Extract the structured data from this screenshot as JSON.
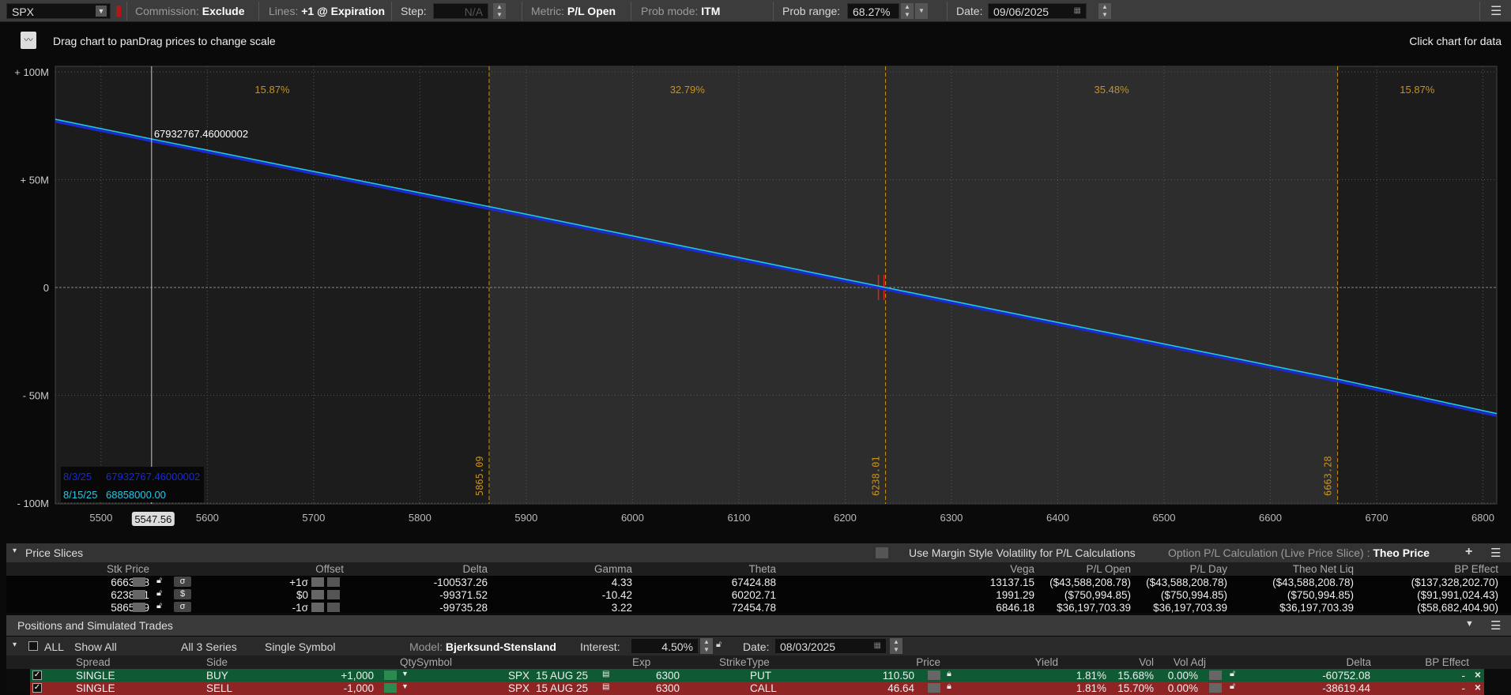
{
  "toolbar": {
    "symbol": "SPX",
    "commission_label": "Commission:",
    "commission_value": "Exclude",
    "lines_label": "Lines:",
    "lines_value": "+1 @ Expiration",
    "step_label": "Step:",
    "step_value": "N/A",
    "metric_label": "Metric:",
    "metric_value": "P/L Open",
    "prob_mode_label": "Prob mode:",
    "prob_mode_value": "ITM",
    "prob_range_label": "Prob range:",
    "prob_range_value": "68.27%",
    "date_label": "Date:",
    "date_value": "09/06/2025"
  },
  "chart_hint": "Drag chart to panDrag prices to change scale",
  "chart_hint_right": "Click chart for data",
  "chart_data": {
    "type": "line",
    "xlim": [
      5457,
      6813
    ],
    "ylim": [
      -100000000,
      100000000
    ],
    "x_ticks": [
      5500,
      5600,
      5700,
      5800,
      5900,
      6000,
      6100,
      6200,
      6300,
      6400,
      6500,
      6600,
      6700,
      6800
    ],
    "y_ticks": [
      {
        "v": 100000000,
        "label": "+ 100M"
      },
      {
        "v": 50000000,
        "label": "+ 50M"
      },
      {
        "v": 0,
        "label": "0"
      },
      {
        "v": -50000000,
        "label": "- 50M"
      },
      {
        "v": -100000000,
        "label": "- 100M"
      }
    ],
    "grid": true,
    "series": [
      {
        "name": "8/3/25",
        "color": "#1a2bd6",
        "x": [
          5457,
          5547.56,
          5865.09,
          6238.01,
          6663.28,
          6813
        ],
        "y": [
          77000000,
          67932767.46,
          36500000,
          -900000,
          -43500000,
          -59500000
        ]
      },
      {
        "name": "8/15/25",
        "color": "#22c8e8",
        "x": [
          5457,
          5547.56,
          5865.09,
          6238.01,
          6663.28,
          6813
        ],
        "y": [
          78000000,
          68858000,
          37500000,
          0,
          -42500000,
          -58500000
        ]
      }
    ],
    "prob_boundaries": [
      {
        "price": 5865.09,
        "label": "5865.09"
      },
      {
        "price": 6238.01,
        "label": "6238.01"
      },
      {
        "price": 6663.28,
        "label": "6663.28"
      }
    ],
    "prob_regions": [
      "15.87%",
      "32.79%",
      "35.48%",
      "15.87%"
    ],
    "crosshair": {
      "x": 5547.56,
      "x_label": "5547.56",
      "value_label": "67932767.46000002"
    },
    "legend": [
      {
        "date": "8/3/25",
        "value": "67932767.46000002",
        "color": "#1a2bd6"
      },
      {
        "date": "8/15/25",
        "value": "68858000.00",
        "color": "#22c8e8"
      }
    ],
    "colors": {
      "prob": "#c8901c",
      "current_price": "#e02020"
    }
  },
  "price_slices": {
    "title": "Price Slices",
    "margin_vol_label": "Use Margin Style Volatility for P/L Calculations",
    "option_pl_label": "Option P/L Calculation (Live Price Slice) :",
    "option_pl_value": "Theo Price",
    "headers": [
      "Stk Price",
      "Offset",
      "Delta",
      "Gamma",
      "Theta",
      "Vega",
      "P/L Open",
      "P/L Day",
      "Theo Net Liq",
      "BP Effect"
    ],
    "rows": [
      {
        "stk": "6663.28",
        "tag": "σ",
        "offset": "+1σ",
        "delta": "-100537.26",
        "gamma": "4.33",
        "theta": "67424.88",
        "vega": "13137.15",
        "pl_open": "($43,588,208.78)",
        "pl_day": "($43,588,208.78)",
        "theo": "($43,588,208.78)",
        "bp": "($137,328,202.70)"
      },
      {
        "stk": "6238.01",
        "tag": "$",
        "offset": "$0",
        "delta": "-99371.52",
        "gamma": "-10.42",
        "theta": "60202.71",
        "vega": "1991.29",
        "pl_open": "($750,994.85)",
        "pl_day": "($750,994.85)",
        "theo": "($750,994.85)",
        "bp": "($91,991,024.43)"
      },
      {
        "stk": "5865.09",
        "tag": "σ",
        "offset": "-1σ",
        "delta": "-99735.28",
        "gamma": "3.22",
        "theta": "72454.78",
        "vega": "6846.18",
        "pl_open": "$36,197,703.39",
        "pl_day": "$36,197,703.39",
        "theo": "$36,197,703.39",
        "bp": "($58,682,404.90)"
      }
    ]
  },
  "positions": {
    "title": "Positions and Simulated Trades",
    "all_label": "ALL",
    "show_all": "Show All",
    "series": "All 3 Series",
    "symbol_mode": "Single Symbol",
    "model_label": "Model:",
    "model_value": "Bjerksund-Stensland",
    "interest_label": "Interest:",
    "interest_value": "4.50%",
    "date_label": "Date:",
    "date_value": "08/03/2025",
    "headers": {
      "spread": "Spread",
      "side": "Side",
      "qtysymbol": "QtySymbol",
      "exp": "Exp",
      "striketype": "StrikeType",
      "price": "Price",
      "yield": "Yield",
      "vol": "Vol",
      "voladj": "Vol Adj",
      "delta": "Delta",
      "bp": "BP Effect"
    },
    "rows": [
      {
        "spread": "SINGLE",
        "side": "BUY",
        "qty": "+1,000",
        "symbol": "SPX",
        "exp": "15 AUG 25",
        "strike": "6300",
        "type": "PUT",
        "price": "110.50",
        "yield": "1.81%",
        "vol": "15.68%",
        "voladj": "0.00%",
        "delta": "-60752.08",
        "bp": "-",
        "color": "green"
      },
      {
        "spread": "SINGLE",
        "side": "SELL",
        "qty": "-1,000",
        "symbol": "SPX",
        "exp": "15 AUG 25",
        "strike": "6300",
        "type": "CALL",
        "price": "46.64",
        "yield": "1.81%",
        "vol": "15.70%",
        "voladj": "0.00%",
        "delta": "-38619.44",
        "bp": "-",
        "color": "red"
      }
    ]
  }
}
